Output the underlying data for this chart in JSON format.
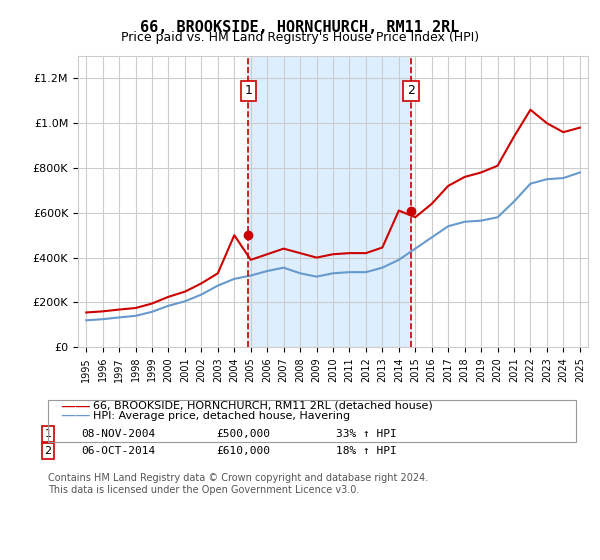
{
  "title": "66, BROOKSIDE, HORNCHURCH, RM11 2RL",
  "subtitle": "Price paid vs. HM Land Registry's House Price Index (HPI)",
  "years": [
    1995,
    1996,
    1997,
    1998,
    1999,
    2000,
    2001,
    2002,
    2003,
    2004,
    2005,
    2006,
    2007,
    2008,
    2009,
    2010,
    2011,
    2012,
    2013,
    2014,
    2015,
    2016,
    2017,
    2018,
    2019,
    2020,
    2021,
    2022,
    2023,
    2024,
    2025
  ],
  "hpi_values": [
    120000,
    125000,
    133000,
    140000,
    158000,
    185000,
    205000,
    235000,
    275000,
    305000,
    320000,
    340000,
    355000,
    330000,
    315000,
    330000,
    335000,
    335000,
    355000,
    390000,
    440000,
    490000,
    540000,
    560000,
    565000,
    580000,
    650000,
    730000,
    750000,
    755000,
    780000
  ],
  "red_values": [
    155000,
    160000,
    168000,
    175000,
    195000,
    225000,
    248000,
    285000,
    330000,
    500000,
    390000,
    415000,
    440000,
    420000,
    400000,
    415000,
    420000,
    420000,
    445000,
    610000,
    580000,
    640000,
    720000,
    760000,
    780000,
    810000,
    940000,
    1060000,
    1000000,
    960000,
    980000
  ],
  "marker1_year": 2004.85,
  "marker1_value": 500000,
  "marker2_year": 2014.75,
  "marker2_value": 610000,
  "red_color": "#cc0000",
  "blue_color": "#6699cc",
  "shade_color": "#ddeeff",
  "marker_box_color": "#cc0000",
  "vline_color": "#cc0000",
  "legend_label_red": "66, BROOKSIDE, HORNCHURCH, RM11 2RL (detached house)",
  "legend_label_blue": "HPI: Average price, detached house, Havering",
  "annot1_label": "08-NOV-2004",
  "annot1_price": "£500,000",
  "annot1_hpi": "33% ↑ HPI",
  "annot2_label": "06-OCT-2014",
  "annot2_price": "£610,000",
  "annot2_hpi": "18% ↑ HPI",
  "footnote": "Contains HM Land Registry data © Crown copyright and database right 2024.\nThis data is licensed under the Open Government Licence v3.0.",
  "ylim": [
    0,
    1300000
  ],
  "xlim_start": 1994.5,
  "xlim_end": 2025.5
}
